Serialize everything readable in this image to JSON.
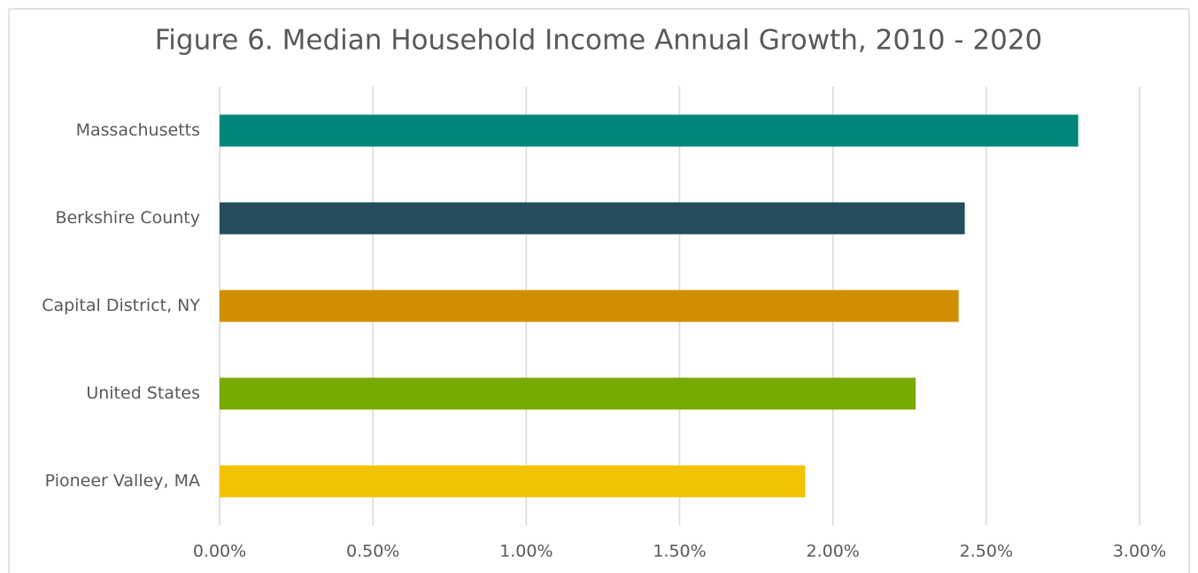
{
  "chart_data": {
    "type": "hbar",
    "title": "Figure 6. Median Household Income Annual Growth, 2010 - 2020",
    "categories": [
      "Massachusetts",
      "Berkshire County",
      "Capital District, NY",
      "United States",
      "Pioneer Valley, MA"
    ],
    "values": [
      2.8,
      2.43,
      2.41,
      2.27,
      1.91
    ],
    "colors": [
      "#00877a",
      "#234d5c",
      "#d18f00",
      "#78ab00",
      "#f2c300"
    ],
    "xlim": [
      0,
      3
    ],
    "xticks": [
      {
        "value": 0,
        "label": "0.00%"
      },
      {
        "value": 0.5,
        "label": "0.50%"
      },
      {
        "value": 1,
        "label": "1.00%"
      },
      {
        "value": 1.5,
        "label": "1.50%"
      },
      {
        "value": 2,
        "label": "2.00%"
      },
      {
        "value": 2.5,
        "label": "2.50%"
      },
      {
        "value": 3,
        "label": "3.00%"
      }
    ],
    "grid": true
  }
}
